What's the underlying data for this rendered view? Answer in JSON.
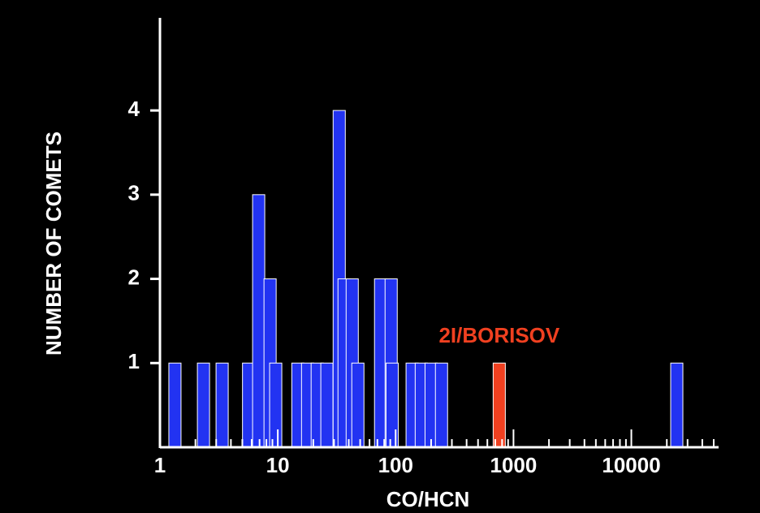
{
  "chart_data": {
    "type": "bar",
    "x_label": "CO/HCN",
    "y_label": "NUMBER OF COMETS",
    "log_x": true,
    "x": [
      1.34,
      2.34,
      3.37,
      5.65,
      6.88,
      8.6,
      9.6,
      14.8,
      17.9,
      21.6,
      26.1,
      33.2,
      36.5,
      42.8,
      47.8,
      74.5,
      91.6,
      93.4,
      138,
      165,
      200,
      245,
      757,
      24300
    ],
    "values": [
      1,
      1,
      1,
      1,
      3,
      2,
      1,
      1,
      1,
      1,
      1,
      4,
      2,
      2,
      1,
      2,
      2,
      1,
      1,
      1,
      1,
      1,
      1,
      1
    ],
    "color": "#2233f2",
    "xlim": [
      1,
      55000
    ],
    "ylim": [
      0,
      5.1
    ],
    "xticks": [
      1,
      10,
      100,
      1000,
      10000
    ],
    "yticks": [
      1,
      2,
      3,
      4
    ],
    "annotation": {
      "text": "2I/BORISOV",
      "x": 757,
      "y": 1,
      "color": "#f04020"
    }
  }
}
